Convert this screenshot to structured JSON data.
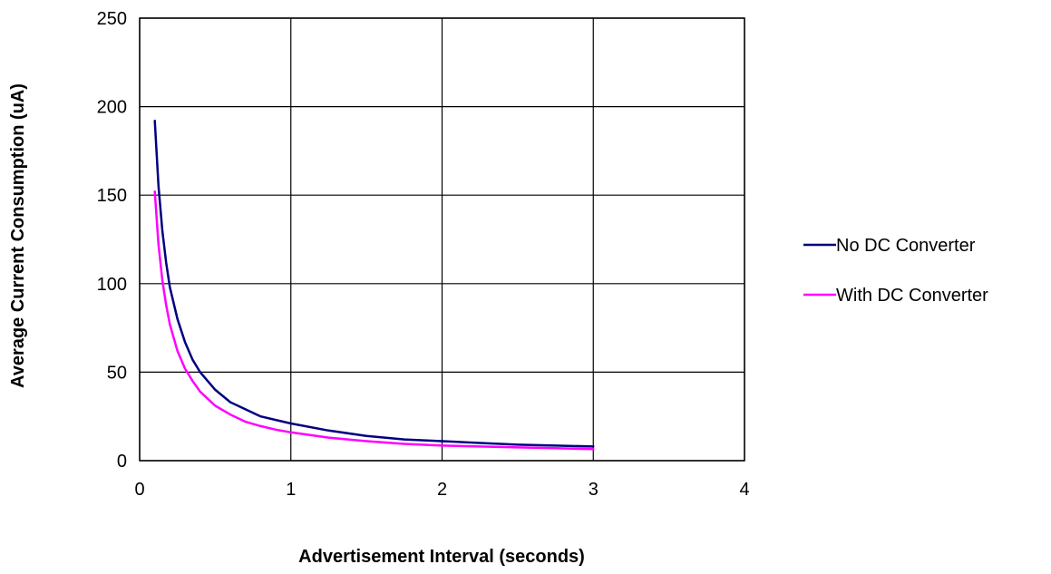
{
  "chart_data": {
    "type": "line",
    "title": "",
    "xlabel": "Advertisement Interval (seconds)",
    "ylabel": "Average Current Consumption (uA)",
    "xlim": [
      0,
      4
    ],
    "ylim": [
      0,
      250
    ],
    "xticks": [
      0,
      1,
      2,
      3,
      4
    ],
    "yticks": [
      0,
      50,
      100,
      150,
      200,
      250
    ],
    "grid": true,
    "legend_position": "right",
    "series": [
      {
        "name": "No DC Converter",
        "color": "#000080",
        "x": [
          0.1,
          0.125,
          0.15,
          0.175,
          0.2,
          0.25,
          0.3,
          0.35,
          0.4,
          0.5,
          0.6,
          0.7,
          0.8,
          0.9,
          1.0,
          1.25,
          1.5,
          1.75,
          2.0,
          2.25,
          2.5,
          2.75,
          3.0
        ],
        "y": [
          192,
          155,
          130,
          112,
          98,
          80,
          67,
          57,
          50,
          40,
          33,
          29,
          25,
          23,
          21,
          17,
          14,
          12,
          11,
          10,
          9,
          8.5,
          8
        ]
      },
      {
        "name": "With DC Converter",
        "color": "#FF00FF",
        "x": [
          0.1,
          0.125,
          0.15,
          0.175,
          0.2,
          0.25,
          0.3,
          0.35,
          0.4,
          0.5,
          0.6,
          0.7,
          0.8,
          0.9,
          1.0,
          1.25,
          1.5,
          1.75,
          2.0,
          2.25,
          2.5,
          2.75,
          3.0
        ],
        "y": [
          152,
          122,
          102,
          88,
          77,
          62,
          52,
          45,
          39,
          31,
          26,
          22,
          19.5,
          17.5,
          16,
          13,
          11,
          9.5,
          8.5,
          8,
          7.5,
          7,
          6.5
        ]
      }
    ]
  }
}
